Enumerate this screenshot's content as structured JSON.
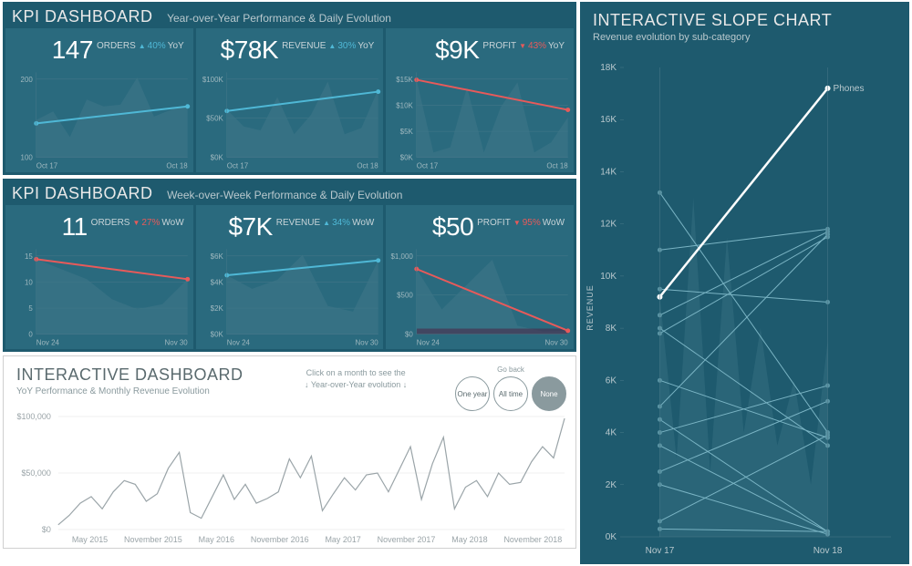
{
  "colors": {
    "panel_bg": "#1e5a6e",
    "card_bg": "#2a6a7e",
    "area_fill": "#3c7588",
    "grid": "#4a7a8a",
    "axis_text": "#9fb8bf",
    "trend_up": "#4fb8d6",
    "trend_down": "#e85a5a",
    "white": "#ffffff",
    "id_line": "#9aa4a8",
    "slope_line": "#7ab4c4",
    "slope_dot": "#5a94a4",
    "slope_highlight": "#ffffff",
    "baseline_fill": "#4a2a4a"
  },
  "yoy": {
    "title": "KPI DASHBOARD",
    "subtitle": "Year-over-Year Performance & Daily Evolution",
    "period_label": "YoY",
    "x_start": "Oct 17",
    "x_end": "Oct 18",
    "cards": [
      {
        "value": "147",
        "unit": "ORDERS",
        "delta_pct": "40%",
        "direction": "up",
        "y_ticks": [
          "100",
          "200"
        ],
        "y_max": 250,
        "area": [
          110,
          135,
          60,
          170,
          150,
          155,
          235,
          120,
          140,
          155
        ],
        "trend": [
          100,
          150
        ]
      },
      {
        "value": "$78K",
        "unit": "REVENUE",
        "delta_pct": "30%",
        "direction": "up",
        "y_ticks": [
          "$0K",
          "$50K",
          "$100K"
        ],
        "y_max": 110,
        "area": [
          62,
          40,
          35,
          78,
          30,
          55,
          98,
          30,
          38,
          88
        ],
        "trend": [
          60,
          85
        ]
      },
      {
        "value": "$9K",
        "unit": "PROFIT",
        "delta_pct": "43%",
        "direction": "down",
        "y_ticks": [
          "$0K",
          "$5K",
          "$10K",
          "$15K"
        ],
        "y_max": 17,
        "area": [
          15.5,
          1,
          2,
          14,
          1,
          10,
          15,
          1,
          3,
          8
        ],
        "trend": [
          15.5,
          9.5
        ]
      }
    ]
  },
  "wow": {
    "title": "KPI DASHBOARD",
    "subtitle": "Week-over-Week Performance & Daily Evolution",
    "period_label": "WoW",
    "x_start": "Nov 24",
    "x_end": "Nov 30",
    "cards": [
      {
        "value": "11",
        "unit": "ORDERS",
        "delta_pct": "27%",
        "direction": "down",
        "y_ticks": [
          "0",
          "5",
          "10",
          "15"
        ],
        "y_max": 17,
        "area": [
          15,
          13,
          11,
          7,
          5,
          6,
          11
        ],
        "trend": [
          15,
          11
        ]
      },
      {
        "value": "$7K",
        "unit": "REVENUE",
        "delta_pct": "34%",
        "direction": "up",
        "y_ticks": [
          "$0K",
          "$2K",
          "$4K",
          "$6K"
        ],
        "y_max": 7.5,
        "area": [
          5.2,
          4.0,
          4.8,
          7.0,
          2.5,
          2.0,
          6.5
        ],
        "trend": [
          5.2,
          6.5
        ]
      },
      {
        "value": "$50",
        "unit": "PROFIT",
        "delta_pct": "95%",
        "direction": "down",
        "y_ticks": [
          "$0",
          "$500",
          "$1,000"
        ],
        "y_max": 1200,
        "area": [
          920,
          350,
          700,
          1050,
          120,
          40,
          50
        ],
        "baseline": [
          80,
          80,
          80,
          80,
          80,
          80,
          80
        ],
        "trend": [
          920,
          50
        ]
      }
    ]
  },
  "interactive": {
    "title": "INTERACTIVE DASHBOARD",
    "subtitle": "YoY Performance & Monthly Revenue Evolution",
    "hint_line1": "Click on a month to see the",
    "hint_line2": "↓ Year-over-Year evolution ↓",
    "go_back_label": "Go back",
    "buttons": [
      {
        "label": "One year",
        "active": false
      },
      {
        "label": "All time",
        "active": false
      },
      {
        "label": "None",
        "active": true
      }
    ],
    "y_ticks": [
      "$0",
      "$50,000",
      "$100,000"
    ],
    "y_max": 120000,
    "x_ticks": [
      "May 2015",
      "November 2015",
      "May 2016",
      "November 2016",
      "May 2017",
      "November 2017",
      "May 2018",
      "November 2018"
    ],
    "series": [
      5000,
      15000,
      28000,
      35000,
      22000,
      40000,
      52000,
      48000,
      30000,
      38000,
      65000,
      82000,
      18000,
      12000,
      35000,
      58000,
      32000,
      48000,
      28000,
      33000,
      40000,
      75000,
      55000,
      78000,
      20000,
      38000,
      55000,
      42000,
      58000,
      60000,
      40000,
      64000,
      88000,
      32000,
      70000,
      98000,
      22000,
      45000,
      52000,
      35000,
      60000,
      48000,
      50000,
      72000,
      88000,
      76000,
      118000
    ]
  },
  "slope": {
    "title": "INTERACTIVE SLOPE CHART",
    "subtitle": "Revenue evolution by sub-category",
    "y_label": "REVENUE",
    "y_max": 18000,
    "y_ticks": [
      "0K",
      "2K",
      "4K",
      "6K",
      "8K",
      "10K",
      "12K",
      "14K",
      "16K",
      "18K"
    ],
    "x_start": "Nov 17",
    "x_end": "Nov 18",
    "highlight_label": "Phones",
    "bg_area": [
      9200,
      3000,
      13000,
      2500,
      11500,
      4000,
      8000,
      3500,
      6000,
      2000,
      7500
    ],
    "highlight": {
      "start": 9200,
      "end": 17200
    },
    "lines": [
      {
        "start": 13200,
        "end": 4000
      },
      {
        "start": 11000,
        "end": 11800
      },
      {
        "start": 9500,
        "end": 9000
      },
      {
        "start": 8500,
        "end": 11700
      },
      {
        "start": 8000,
        "end": 3500
      },
      {
        "start": 7800,
        "end": 11500
      },
      {
        "start": 6000,
        "end": 3800
      },
      {
        "start": 5000,
        "end": 11600
      },
      {
        "start": 4500,
        "end": 200
      },
      {
        "start": 4000,
        "end": 5800
      },
      {
        "start": 3500,
        "end": 200
      },
      {
        "start": 2500,
        "end": 5200
      },
      {
        "start": 2000,
        "end": 100
      },
      {
        "start": 600,
        "end": 3900
      },
      {
        "start": 300,
        "end": 200
      }
    ]
  }
}
